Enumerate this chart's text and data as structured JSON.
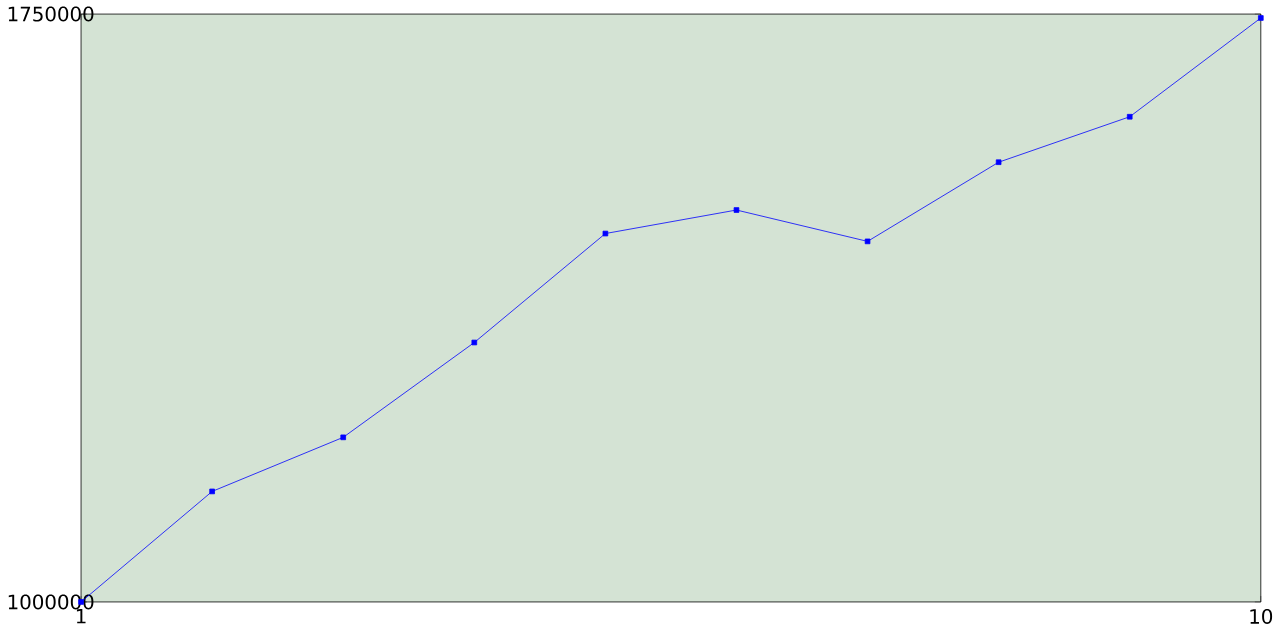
{
  "chart_data": {
    "type": "line",
    "x": [
      1,
      2,
      3,
      4,
      5,
      6,
      7,
      8,
      9,
      10
    ],
    "series": [
      {
        "color": "#0000ff",
        "values": [
          1000000,
          1141000,
          1210000,
          1331000,
          1470000,
          1500000,
          1460000,
          1561000,
          1619000,
          1745000
        ]
      }
    ],
    "xlim": [
      1,
      10
    ],
    "xticks": [
      1,
      10
    ],
    "ylim": [
      1000000,
      1750000
    ],
    "yticks": [
      1000000,
      1750000
    ],
    "marker": "square",
    "line_style": "solid",
    "grid": false
  }
}
